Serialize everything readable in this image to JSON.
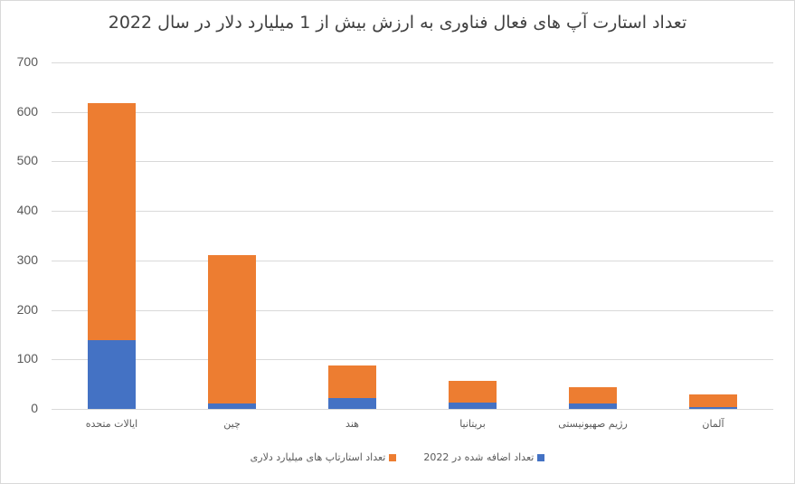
{
  "chart_data": {
    "type": "bar",
    "stacked": true,
    "title": "تعداد استارت آپ های فعال فناوری به ارزش بیش از 1 میلیارد دلار در سال 2022",
    "xlabel": "",
    "ylabel": "",
    "ylim": [
      0,
      700
    ],
    "yticks": [
      0,
      100,
      200,
      300,
      400,
      500,
      600,
      700
    ],
    "grid": true,
    "legend_position": "bottom",
    "categories": [
      "ایالات متحده",
      "چین",
      "هند",
      "بریتانیا",
      "رژیم صهیونیستی",
      "آلمان"
    ],
    "series": [
      {
        "name": "تعداد اضافه شده در 2022",
        "color": "#4472c4",
        "values": [
          139,
          11,
          22,
          13,
          11,
          3
        ]
      },
      {
        "name": "تعداد استارتاپ های میلیارد دلاری",
        "color": "#ed7d31",
        "values": [
          479,
          299,
          66,
          44,
          33,
          26
        ]
      }
    ],
    "totals": [
      618,
      310,
      88,
      57,
      44,
      29
    ]
  },
  "legend": [
    {
      "label": "تعداد اضافه شده در 2022",
      "color": "#4472c4"
    },
    {
      "label": "تعداد استارتاپ های میلیارد دلاری",
      "color": "#ed7d31"
    }
  ]
}
